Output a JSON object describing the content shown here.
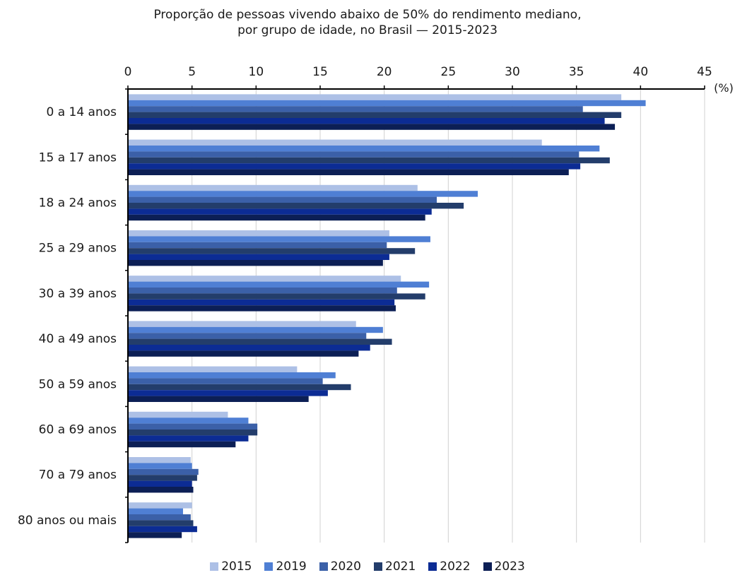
{
  "chart_data": {
    "type": "bar",
    "orientation": "horizontal",
    "title": [
      "Proporção de pessoas vivendo abaixo de 50% do rendimento mediano,",
      "por grupo de idade, no Brasil — 2015-2023"
    ],
    "unit_label": "(%)",
    "xlim": [
      0,
      45
    ],
    "ticks": [
      0,
      5,
      10,
      15,
      20,
      25,
      30,
      35,
      40,
      45
    ],
    "grid": true,
    "axis_position": "top",
    "legend_position": "bottom",
    "categories": [
      "0 a 14 anos",
      "15 a 17 anos",
      "18 a 24 anos",
      "25 a 29 anos",
      "30 a 39 anos",
      "40 a 49 anos",
      "50 a 59 anos",
      "60 a 69 anos",
      "70 a 79 anos",
      "80 anos ou mais"
    ],
    "series": [
      {
        "name": "2015",
        "color": "#adc0e6",
        "values": [
          38.5,
          32.3,
          22.6,
          20.4,
          21.3,
          17.8,
          13.2,
          7.8,
          4.9,
          5.0
        ]
      },
      {
        "name": "2019",
        "color": "#4f7fd4",
        "values": [
          40.4,
          36.8,
          27.3,
          23.6,
          23.5,
          19.9,
          16.2,
          9.4,
          5.0,
          4.3
        ]
      },
      {
        "name": "2020",
        "color": "#3b60a8",
        "values": [
          35.5,
          35.2,
          24.1,
          20.2,
          21.0,
          18.6,
          15.2,
          10.1,
          5.5,
          4.9
        ]
      },
      {
        "name": "2021",
        "color": "#233d6b",
        "values": [
          38.5,
          37.6,
          26.2,
          22.4,
          23.2,
          20.6,
          17.4,
          10.1,
          5.4,
          5.1
        ]
      },
      {
        "name": "2022",
        "color": "#0c2c94",
        "values": [
          37.2,
          35.3,
          23.7,
          20.4,
          20.8,
          18.9,
          15.6,
          9.4,
          5.0,
          5.4
        ]
      },
      {
        "name": "2023",
        "color": "#0c1f55",
        "values": [
          38.0,
          34.4,
          23.2,
          19.9,
          20.9,
          18.0,
          14.1,
          8.4,
          5.1,
          4.2
        ]
      }
    ]
  }
}
